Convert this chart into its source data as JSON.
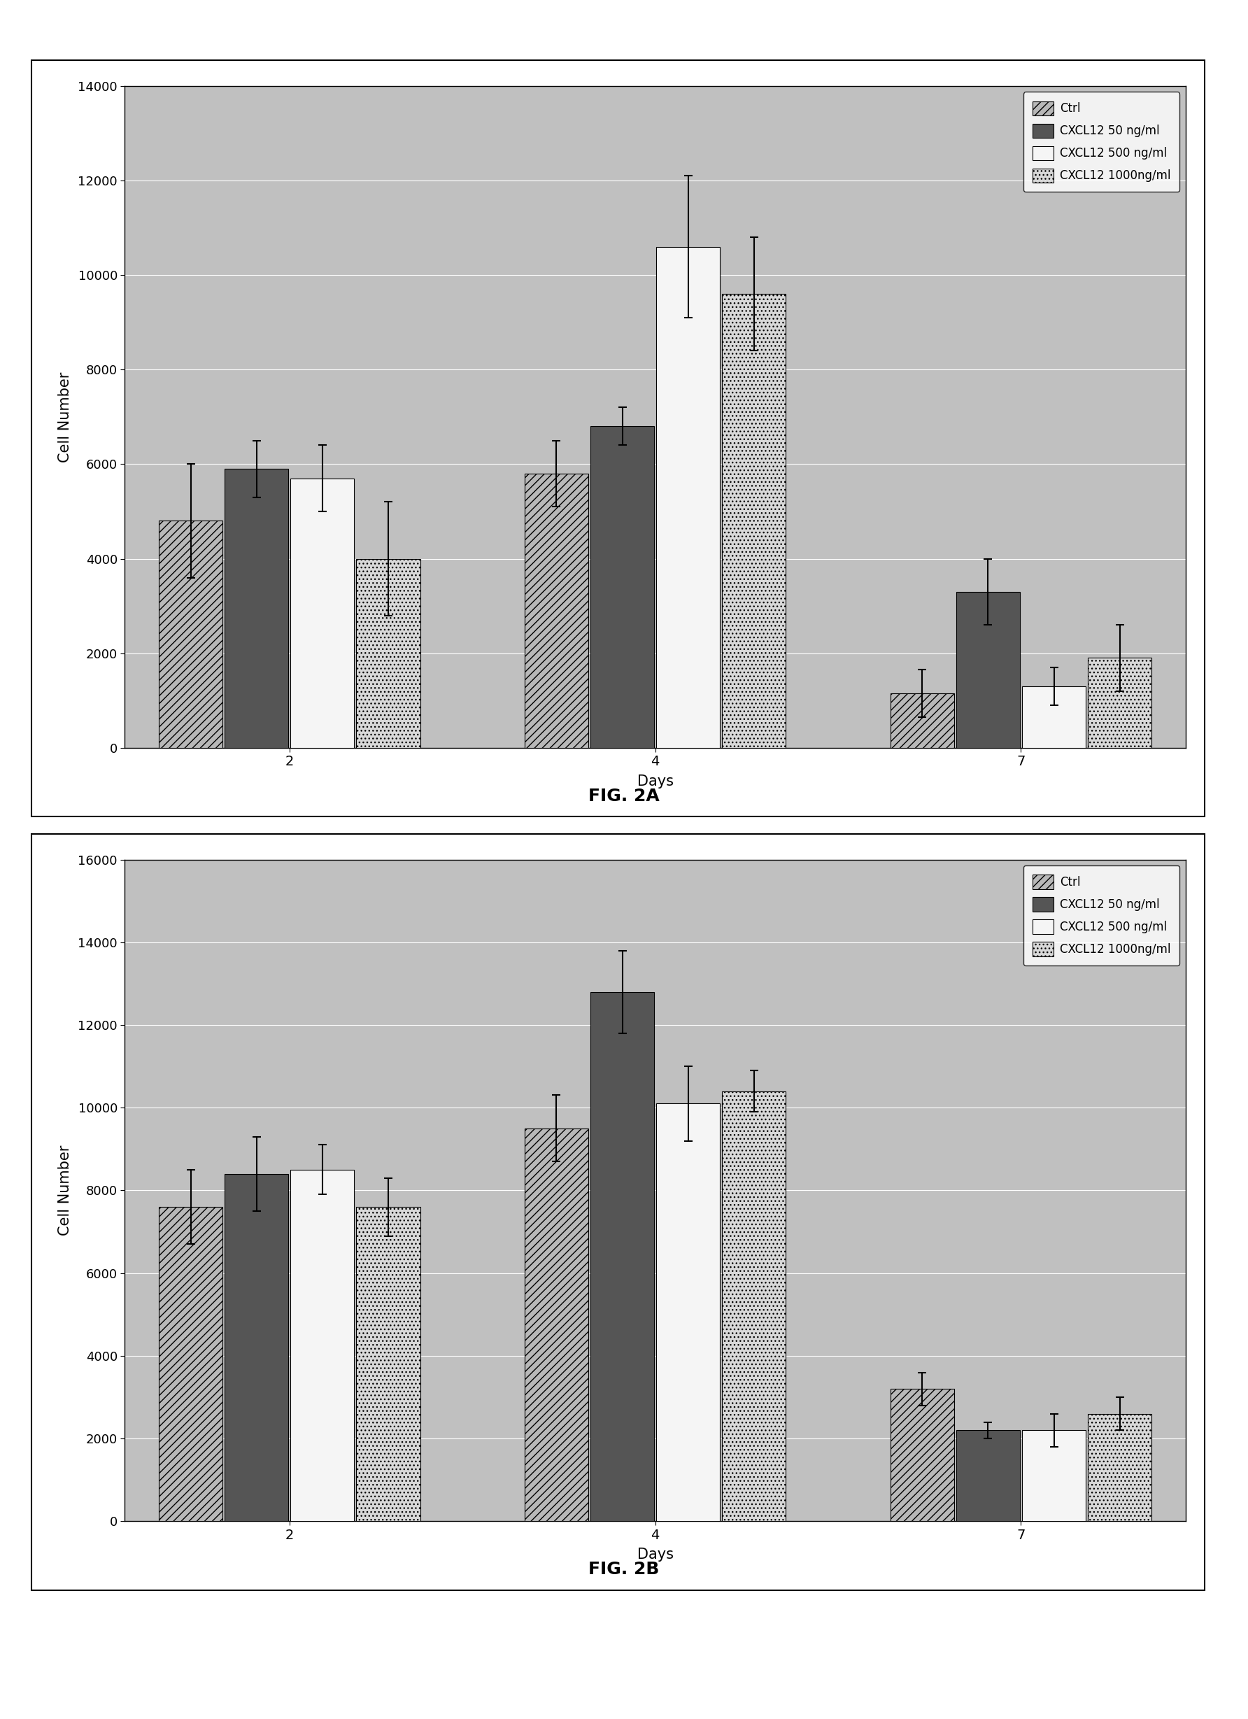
{
  "fig2a": {
    "title": "FIG. 2A",
    "ylabel": "Cell Number",
    "xlabel": "Days",
    "days": [
      2,
      4,
      7
    ],
    "series": [
      {
        "label": "Ctrl",
        "color": "#b8b8b8",
        "hatch": "///",
        "values": [
          4800,
          5800,
          1150
        ],
        "errors": [
          1200,
          700,
          500
        ]
      },
      {
        "label": "CXCL12 50 ng/ml",
        "color": "#555555",
        "hatch": "",
        "values": [
          5900,
          6800,
          3300
        ],
        "errors": [
          600,
          400,
          700
        ]
      },
      {
        "label": "CXCL12 500 ng/ml",
        "color": "#f5f5f5",
        "hatch": "",
        "values": [
          5700,
          10600,
          1300
        ],
        "errors": [
          700,
          1500,
          400
        ]
      },
      {
        "label": "CXCL12 1000ng/ml",
        "color": "#d8d8d8",
        "hatch": "...",
        "values": [
          4000,
          9600,
          1900
        ],
        "errors": [
          1200,
          1200,
          700
        ]
      }
    ],
    "ylim": [
      0,
      14000
    ],
    "yticks": [
      0,
      2000,
      4000,
      6000,
      8000,
      10000,
      12000,
      14000
    ]
  },
  "fig2b": {
    "title": "FIG. 2B",
    "ylabel": "Cell Number",
    "xlabel": "Days",
    "days": [
      2,
      4,
      7
    ],
    "series": [
      {
        "label": "Ctrl",
        "color": "#b8b8b8",
        "hatch": "///",
        "values": [
          7600,
          9500,
          3200
        ],
        "errors": [
          900,
          800,
          400
        ]
      },
      {
        "label": "CXCL12 50 ng/ml",
        "color": "#555555",
        "hatch": "",
        "values": [
          8400,
          12800,
          2200
        ],
        "errors": [
          900,
          1000,
          200
        ]
      },
      {
        "label": "CXCL12 500 ng/ml",
        "color": "#f5f5f5",
        "hatch": "",
        "values": [
          8500,
          10100,
          2200
        ],
        "errors": [
          600,
          900,
          400
        ]
      },
      {
        "label": "CXCL12 1000ng/ml",
        "color": "#d8d8d8",
        "hatch": "...",
        "values": [
          7600,
          10400,
          2600
        ],
        "errors": [
          700,
          500,
          400
        ]
      }
    ],
    "ylim": [
      0,
      16000
    ],
    "yticks": [
      0,
      2000,
      4000,
      6000,
      8000,
      10000,
      12000,
      14000,
      16000
    ]
  },
  "plot_bg_color": "#c0c0c0",
  "outer_bg": "#ffffff",
  "bar_width": 0.18,
  "legend_colors": [
    "#b8b8b8",
    "#555555",
    "#f5f5f5",
    "#d8d8d8"
  ],
  "legend_hatches": [
    "///",
    "",
    "",
    "..."
  ]
}
